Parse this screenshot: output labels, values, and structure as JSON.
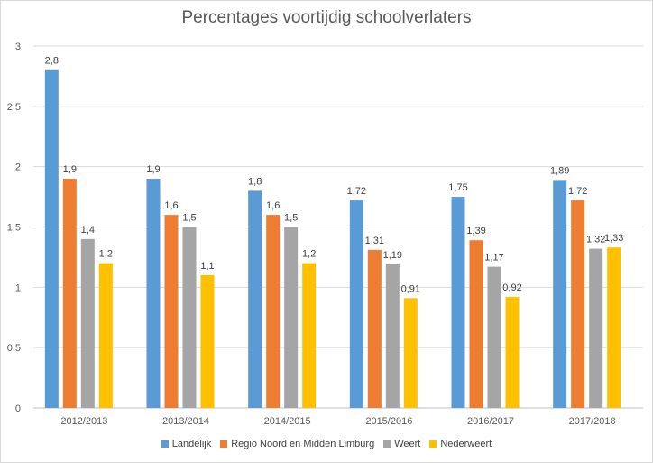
{
  "chart_data": {
    "type": "bar",
    "title": "Percentages voortijdig schoolverlaters",
    "xlabel": "",
    "ylabel": "",
    "ylim": [
      0,
      3
    ],
    "yticks": [
      0,
      0.5,
      1,
      1.5,
      2,
      2.5,
      3
    ],
    "ytick_labels": [
      "0",
      "0,5",
      "1",
      "1,5",
      "2",
      "2,5",
      "3"
    ],
    "grid": true,
    "legend_position": "bottom",
    "categories": [
      "2012/2013",
      "2013/2014",
      "2014/2015",
      "2015/2016",
      "2016/2017",
      "2017/2018"
    ],
    "series": [
      {
        "name": "Landelijk",
        "color": "#5b9bd5",
        "values": [
          2.8,
          1.9,
          1.8,
          1.72,
          1.75,
          1.89
        ],
        "labels": [
          "2,8",
          "1,9",
          "1,8",
          "1,72",
          "1,75",
          "1,89"
        ]
      },
      {
        "name": "Regio Noord en Midden Limburg",
        "color": "#ed7d31",
        "values": [
          1.9,
          1.6,
          1.6,
          1.31,
          1.39,
          1.72
        ],
        "labels": [
          "1,9",
          "1,6",
          "1,6",
          "1,31",
          "1,39",
          "1,72"
        ]
      },
      {
        "name": "Weert",
        "color": "#a5a5a5",
        "values": [
          1.4,
          1.5,
          1.5,
          1.19,
          1.17,
          1.32
        ],
        "labels": [
          "1,4",
          "1,5",
          "1,5",
          "1,19",
          "1,17",
          "1,32"
        ]
      },
      {
        "name": "Nederweert",
        "color": "#ffc000",
        "values": [
          1.2,
          1.1,
          1.2,
          0.91,
          0.92,
          1.33
        ],
        "labels": [
          "1,2",
          "1,1",
          "1,2",
          "0,91",
          "0,92",
          "1,33"
        ]
      }
    ]
  }
}
